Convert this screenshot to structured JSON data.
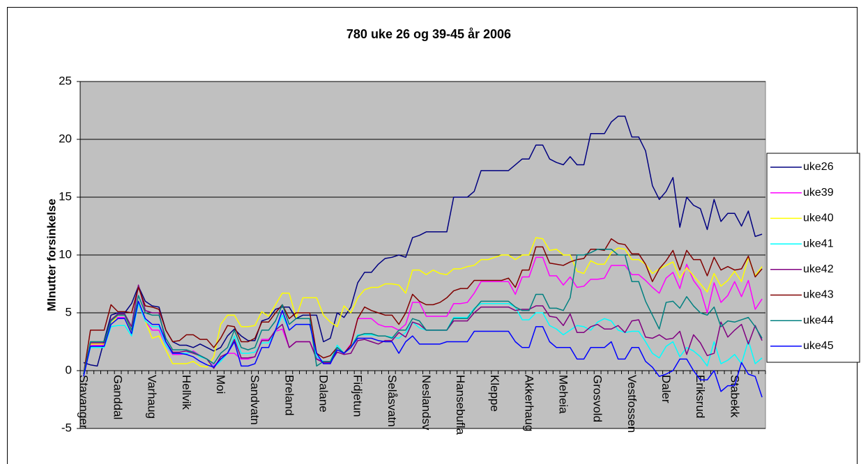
{
  "chart_data": {
    "type": "line",
    "title": "780 uke 26 og 39-45 år 2006",
    "y_label": "MInutter forsinkelse",
    "categories": [
      "Stavanger",
      null,
      null,
      null,
      null,
      "Ganddal",
      null,
      null,
      null,
      null,
      "Varhaug",
      null,
      null,
      null,
      null,
      "Hellvik",
      null,
      null,
      null,
      null,
      "Moi",
      null,
      null,
      null,
      null,
      "Sandvatn",
      null,
      null,
      null,
      null,
      "Breland",
      null,
      null,
      null,
      null,
      "Dalane",
      null,
      null,
      null,
      null,
      "Fidjetun",
      null,
      null,
      null,
      null,
      "Selåsvatn",
      null,
      null,
      null,
      null,
      "Neslandsv",
      null,
      null,
      null,
      null,
      "Hansebufla",
      null,
      null,
      null,
      null,
      "Kleppe",
      null,
      null,
      null,
      null,
      "Akkerhaug",
      null,
      null,
      null,
      null,
      "Meheia",
      null,
      null,
      null,
      null,
      "Grosvold",
      null,
      null,
      null,
      null,
      "Vestfossen",
      null,
      null,
      null,
      null,
      "Daler",
      null,
      null,
      null,
      null,
      "Eriksrud",
      null,
      null,
      null,
      null,
      "Stabekk",
      null,
      null,
      null,
      null
    ],
    "ylim": [
      -5,
      25
    ],
    "yticks": [
      -5,
      0,
      5,
      10,
      15,
      20,
      25
    ],
    "grid": true,
    "legend": "right",
    "series": [
      {
        "name": "uke26",
        "color": "#000080",
        "values": [
          0.7,
          0.5,
          0.4,
          2.6,
          4.8,
          5.0,
          5.0,
          5.8,
          7.3,
          6.0,
          5.6,
          5.5,
          3.5,
          2.5,
          2.2,
          2.2,
          2.0,
          2.3,
          2.0,
          1.7,
          2.0,
          3.0,
          3.6,
          3.0,
          2.6,
          2.6,
          4.3,
          4.5,
          5.3,
          5.5,
          5.5,
          4.5,
          4.8,
          4.8,
          4.8,
          2.5,
          2.8,
          5.0,
          4.6,
          5.5,
          7.6,
          8.5,
          8.5,
          9.2,
          9.7,
          9.8,
          10.0,
          9.8,
          11.5,
          11.7,
          12.0,
          12.0,
          12.0,
          12.0,
          15.0,
          15.0,
          15.0,
          15.5,
          17.3,
          17.3,
          17.3,
          17.3,
          17.3,
          17.8,
          18.3,
          18.3,
          19.5,
          19.5,
          18.3,
          18.0,
          17.8,
          18.5,
          17.8,
          17.8,
          20.5,
          20.5,
          20.5,
          21.5,
          22.0,
          22.0,
          20.2,
          20.2,
          19.0,
          16.0,
          14.8,
          15.5,
          16.7,
          12.4,
          15.0,
          14.3,
          14.0,
          12.2,
          14.8,
          12.9,
          13.6,
          13.6,
          12.5,
          13.8,
          11.6,
          11.8
        ]
      },
      {
        "name": "uke39",
        "color": "#ff00ff",
        "values": [
          -0.3,
          2.2,
          2.2,
          2.2,
          4.4,
          4.6,
          4.6,
          3.5,
          5.8,
          4.3,
          3.5,
          3.5,
          2.2,
          1.4,
          1.4,
          1.5,
          1.7,
          1.3,
          1.0,
          0.4,
          1.0,
          1.5,
          1.5,
          1.0,
          1.0,
          1.2,
          2.7,
          2.7,
          3.4,
          3.6,
          2.0,
          2.5,
          2.5,
          2.5,
          1.2,
          0.6,
          0.6,
          2.0,
          1.5,
          2.3,
          4.5,
          4.5,
          4.5,
          4.0,
          3.8,
          3.8,
          3.5,
          4.0,
          5.9,
          5.9,
          4.7,
          4.7,
          4.7,
          4.7,
          5.8,
          5.8,
          5.9,
          6.7,
          7.7,
          7.7,
          7.7,
          7.7,
          7.7,
          6.6,
          8.1,
          8.1,
          9.8,
          9.8,
          8.2,
          8.2,
          7.4,
          8.1,
          7.2,
          7.3,
          7.9,
          7.9,
          8.0,
          9.1,
          9.1,
          9.1,
          8.3,
          8.3,
          7.8,
          7.2,
          6.7,
          8.0,
          8.5,
          7.1,
          9.2,
          7.8,
          7.0,
          5.0,
          7.6,
          5.9,
          6.5,
          7.7,
          6.4,
          7.8,
          5.3,
          6.2
        ]
      },
      {
        "name": "uke40",
        "color": "#ffff00",
        "values": [
          -0.3,
          2.3,
          2.3,
          2.3,
          4.0,
          4.8,
          4.8,
          3.2,
          6.0,
          4.3,
          2.8,
          3.0,
          1.8,
          0.6,
          0.6,
          0.6,
          0.8,
          0.4,
          0.3,
          1.2,
          4.0,
          4.8,
          4.8,
          3.8,
          3.8,
          3.9,
          5.1,
          4.7,
          5.7,
          6.7,
          6.7,
          4.6,
          6.3,
          6.3,
          6.3,
          4.8,
          4.2,
          3.8,
          5.6,
          5.0,
          6.3,
          7.0,
          7.2,
          7.2,
          7.5,
          7.5,
          7.4,
          6.7,
          8.7,
          8.7,
          8.3,
          8.7,
          8.4,
          8.3,
          8.8,
          8.8,
          9.0,
          9.1,
          9.6,
          9.6,
          9.8,
          10.0,
          10.0,
          9.6,
          10.0,
          10.0,
          11.5,
          11.4,
          10.4,
          10.5,
          10.0,
          10.0,
          8.6,
          8.4,
          9.5,
          9.2,
          9.2,
          10.2,
          10.6,
          10.5,
          9.6,
          9.6,
          9.2,
          8.4,
          8.8,
          9.1,
          9.4,
          8.0,
          8.9,
          8.2,
          7.5,
          6.8,
          8.4,
          7.3,
          7.8,
          8.6,
          7.7,
          9.8,
          8.2,
          9.0
        ]
      },
      {
        "name": "uke41",
        "color": "#00ffff",
        "values": [
          -0.3,
          2.0,
          2.0,
          2.0,
          3.8,
          3.9,
          3.9,
          3.0,
          5.8,
          4.3,
          3.8,
          3.8,
          2.2,
          1.5,
          1.5,
          1.5,
          1.6,
          1.2,
          1.0,
          0.3,
          0.8,
          1.5,
          3.0,
          1.5,
          1.5,
          1.6,
          2.4,
          2.4,
          3.4,
          4.8,
          3.5,
          4.0,
          4.0,
          4.0,
          1.2,
          0.8,
          0.8,
          2.2,
          1.5,
          2.0,
          3.1,
          3.1,
          3.1,
          3.0,
          3.0,
          2.9,
          2.8,
          3.3,
          4.2,
          3.7,
          3.5,
          3.5,
          3.5,
          3.5,
          4.6,
          4.6,
          4.6,
          5.4,
          5.8,
          5.8,
          5.8,
          5.8,
          5.8,
          5.5,
          4.4,
          4.4,
          5.0,
          5.0,
          3.9,
          3.6,
          3.1,
          3.5,
          3.9,
          3.8,
          3.5,
          4.2,
          4.5,
          4.3,
          3.5,
          3.3,
          3.4,
          3.4,
          2.5,
          1.5,
          1.1,
          2.1,
          2.5,
          1.2,
          2.0,
          1.7,
          1.2,
          0.4,
          2.5,
          0.6,
          0.9,
          1.4,
          0.6,
          2.6,
          0.6,
          1.1
        ]
      },
      {
        "name": "uke42",
        "color": "#800080",
        "values": [
          -0.3,
          2.4,
          2.4,
          2.4,
          4.4,
          4.9,
          4.9,
          3.8,
          7.4,
          5.2,
          5.0,
          5.0,
          2.5,
          1.6,
          1.6,
          1.7,
          1.5,
          1.3,
          1.0,
          0.2,
          1.2,
          1.5,
          2.7,
          1.1,
          1.1,
          1.2,
          2.6,
          2.6,
          3.5,
          4.0,
          2.0,
          2.5,
          2.5,
          2.5,
          1.0,
          0.7,
          0.7,
          1.6,
          1.4,
          1.5,
          2.6,
          2.7,
          2.5,
          2.3,
          2.6,
          2.6,
          3.3,
          2.9,
          4.2,
          4.0,
          3.5,
          3.5,
          3.5,
          3.5,
          4.3,
          4.3,
          4.3,
          5.0,
          5.5,
          5.5,
          5.5,
          5.5,
          5.5,
          5.2,
          5.3,
          5.3,
          5.6,
          5.6,
          4.7,
          4.6,
          3.9,
          4.9,
          3.3,
          3.3,
          3.8,
          4.0,
          3.6,
          3.6,
          3.9,
          3.3,
          4.3,
          4.4,
          2.9,
          2.8,
          3.1,
          2.7,
          2.8,
          3.4,
          1.4,
          3.1,
          2.4,
          1.3,
          1.5,
          4.2,
          2.9,
          3.5,
          4.0,
          2.3,
          3.9,
          2.6
        ]
      },
      {
        "name": "uke43",
        "color": "#800000",
        "values": [
          -0.3,
          3.5,
          3.5,
          3.5,
          5.7,
          5.1,
          5.1,
          5.0,
          7.2,
          5.6,
          5.5,
          5.3,
          3.5,
          2.5,
          2.6,
          3.1,
          3.1,
          2.7,
          2.7,
          2.0,
          2.8,
          3.9,
          3.8,
          2.5,
          2.5,
          2.8,
          4.2,
          4.2,
          5.0,
          5.7,
          4.5,
          5.0,
          5.0,
          5.0,
          1.5,
          1.1,
          1.3,
          2.0,
          1.5,
          2.2,
          4.5,
          5.5,
          5.2,
          5.0,
          4.8,
          4.8,
          4.0,
          5.0,
          6.6,
          6.0,
          5.7,
          5.7,
          5.9,
          6.3,
          6.9,
          7.1,
          7.1,
          7.8,
          7.8,
          7.8,
          7.8,
          7.8,
          8.0,
          7.2,
          8.7,
          8.7,
          10.7,
          10.7,
          9.3,
          9.2,
          9.1,
          9.4,
          9.6,
          9.7,
          10.5,
          10.5,
          10.4,
          11.4,
          11.0,
          10.9,
          10.1,
          10.1,
          9.2,
          7.7,
          8.8,
          9.5,
          10.4,
          8.7,
          10.4,
          9.6,
          9.6,
          8.2,
          9.8,
          8.7,
          9.0,
          8.7,
          8.8,
          9.9,
          8.1,
          8.8
        ]
      },
      {
        "name": "uke44",
        "color": "#008080",
        "values": [
          -0.3,
          2.5,
          2.5,
          2.5,
          4.3,
          4.8,
          4.8,
          3.5,
          6.5,
          5.0,
          4.8,
          4.8,
          2.8,
          1.8,
          1.8,
          1.8,
          1.6,
          1.3,
          1.0,
          0.6,
          1.5,
          2.0,
          3.5,
          2.0,
          1.8,
          2.0,
          3.5,
          3.5,
          4.3,
          5.7,
          4.0,
          4.5,
          4.5,
          4.5,
          0.4,
          0.8,
          0.8,
          2.0,
          1.5,
          2.0,
          3.0,
          3.2,
          3.2,
          3.0,
          3.0,
          2.8,
          3.5,
          3.5,
          4.5,
          4.3,
          3.5,
          3.5,
          3.5,
          3.5,
          4.5,
          4.5,
          4.5,
          5.3,
          6.0,
          6.0,
          6.0,
          6.0,
          6.0,
          5.5,
          5.2,
          5.2,
          6.6,
          6.6,
          5.4,
          5.4,
          5.2,
          6.3,
          10.0,
          10.0,
          10.2,
          10.5,
          10.5,
          10.5,
          10.0,
          10.0,
          7.7,
          7.7,
          6.0,
          4.8,
          3.6,
          5.9,
          6.0,
          5.4,
          6.4,
          5.6,
          5.0,
          4.8,
          5.5,
          3.8,
          4.3,
          4.2,
          4.4,
          4.6,
          3.8,
          2.8
        ]
      },
      {
        "name": "uke45",
        "color": "#0000ff",
        "values": [
          -0.5,
          2.1,
          2.1,
          2.1,
          4.0,
          4.5,
          4.5,
          3.2,
          6.0,
          4.5,
          4.0,
          4.0,
          2.5,
          1.5,
          1.5,
          1.4,
          1.2,
          0.8,
          0.5,
          0.3,
          1.0,
          1.5,
          2.5,
          0.4,
          0.4,
          0.6,
          2.0,
          2.0,
          3.5,
          5.2,
          3.5,
          4.0,
          4.0,
          4.0,
          1.5,
          0.6,
          0.6,
          1.8,
          1.5,
          2.0,
          2.8,
          2.8,
          2.8,
          2.6,
          2.5,
          2.5,
          1.5,
          2.5,
          3.0,
          2.3,
          2.3,
          2.3,
          2.3,
          2.5,
          2.5,
          2.5,
          2.5,
          3.4,
          3.4,
          3.4,
          3.4,
          3.4,
          3.4,
          2.5,
          2.0,
          2.0,
          3.8,
          3.8,
          2.5,
          2.0,
          2.0,
          2.0,
          1.0,
          1.0,
          2.0,
          2.0,
          2.0,
          2.5,
          1.0,
          1.0,
          2.0,
          2.0,
          0.8,
          0.3,
          -0.5,
          -0.3,
          0.0,
          1.0,
          1.0,
          0.0,
          -0.8,
          -0.8,
          0.0,
          -1.8,
          -1.3,
          -1.3,
          0.7,
          -0.3,
          -0.5,
          -2.3
        ]
      }
    ]
  }
}
